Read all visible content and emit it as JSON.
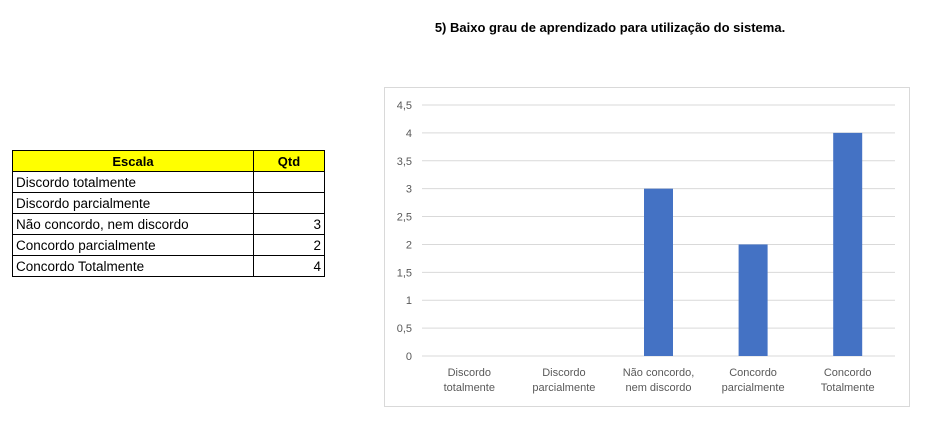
{
  "title": "5) Baixo grau de aprendizado para utilização do sistema.",
  "table": {
    "headers": [
      "Escala",
      "Qtd"
    ],
    "rows": [
      {
        "escala": "Discordo totalmente",
        "qtd": ""
      },
      {
        "escala": "Discordo parcialmente",
        "qtd": ""
      },
      {
        "escala": "Não concordo, nem discordo",
        "qtd": "3"
      },
      {
        "escala": "Concordo parcialmente",
        "qtd": "2"
      },
      {
        "escala": "Concordo Totalmente",
        "qtd": "4"
      }
    ]
  },
  "chart_data": {
    "type": "bar",
    "title": "",
    "categories": [
      [
        "Discordo",
        "totalmente"
      ],
      [
        "Discordo",
        "parcialmente"
      ],
      [
        "Não concordo,",
        "nem discordo"
      ],
      [
        "Concordo",
        "parcialmente"
      ],
      [
        "Concordo",
        "Totalmente"
      ]
    ],
    "values": [
      0,
      0,
      3,
      2,
      4
    ],
    "yticks": [
      "0",
      "0,5",
      "1",
      "1,5",
      "2",
      "2,5",
      "3",
      "3,5",
      "4",
      "4,5"
    ],
    "ylim": [
      0,
      4.5
    ],
    "grid": true,
    "bar_color": "#4472c4",
    "grid_color": "#d9d9d9"
  }
}
